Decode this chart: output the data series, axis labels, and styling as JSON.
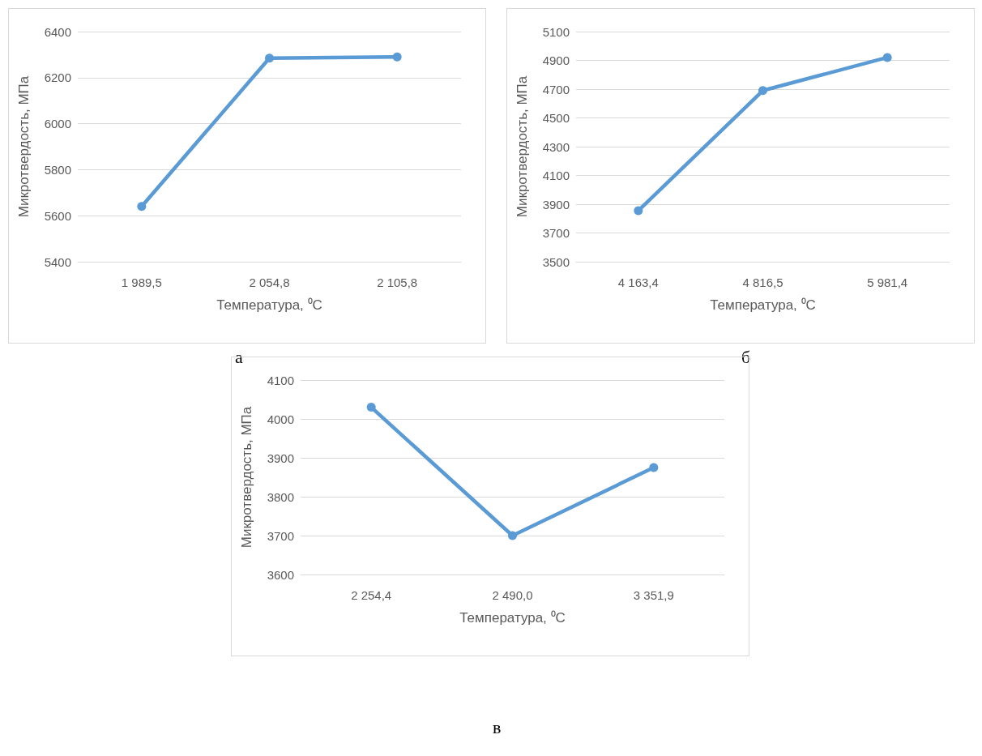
{
  "chart_data": [
    {
      "type": "line",
      "xlabel": "Температура, ⁰C",
      "ylabel": "Микротвердость, МПа",
      "categories": [
        "1 989,5",
        "2 054,8",
        "2 105,8"
      ],
      "values": [
        5640,
        6285,
        6290
      ],
      "color": "#5b9bd5",
      "ylim": [
        5400,
        6400
      ],
      "yticks": [
        5400,
        5600,
        5800,
        6000,
        6200,
        6400
      ],
      "grid": "y",
      "marker": "circle",
      "annotations": [
        "а"
      ]
    },
    {
      "type": "line",
      "xlabel": "Температура, ⁰C",
      "ylabel": "Микротвердость, МПа",
      "categories": [
        "4 163,4",
        "4 816,5",
        "5 981,4"
      ],
      "values": [
        3855,
        4690,
        4920
      ],
      "color": "#5b9bd5",
      "ylim": [
        3500,
        5100
      ],
      "yticks": [
        3500,
        3700,
        3900,
        4100,
        4300,
        4500,
        4700,
        4900,
        5100
      ],
      "grid": "y",
      "marker": "circle",
      "annotations": [
        "б"
      ]
    },
    {
      "type": "line",
      "xlabel": "Температура, ⁰C",
      "ylabel": "Микротвердость, МПа",
      "categories": [
        "2 254,4",
        "2 490,0",
        "3 351,9"
      ],
      "values": [
        4030,
        3700,
        3875
      ],
      "color": "#5b9bd5",
      "ylim": [
        3600,
        4100
      ],
      "yticks": [
        3600,
        3700,
        3800,
        3900,
        4000,
        4100
      ],
      "grid": "y",
      "marker": "circle",
      "annotations": [
        "в"
      ]
    }
  ]
}
